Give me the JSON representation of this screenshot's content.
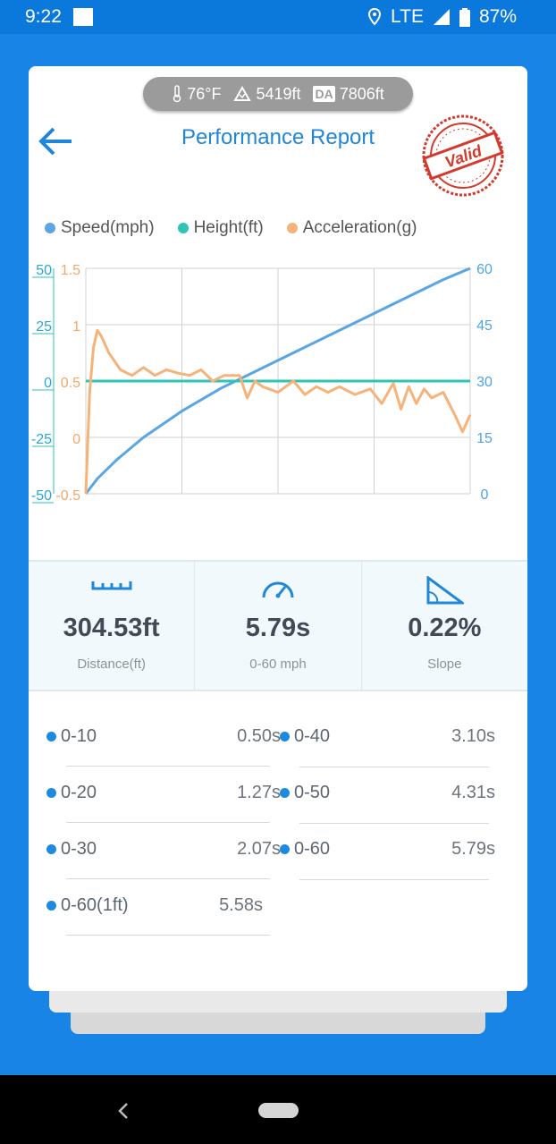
{
  "status_bar": {
    "time": "9:22",
    "network": "LTE",
    "battery": "87%"
  },
  "conditions": {
    "temperature": "76°F",
    "altitude": "5419ft",
    "da_label": "DA",
    "density_altitude": "7806ft"
  },
  "header": {
    "title": "Performance Report",
    "stamp_text": "Valid"
  },
  "legend": [
    {
      "label": "Speed(mph)",
      "color": "#5aa5e3"
    },
    {
      "label": "Height(ft)",
      "color": "#2ec4b6"
    },
    {
      "label": "Acceleration(g)",
      "color": "#f7b27a"
    }
  ],
  "chart_data": {
    "type": "line",
    "y_left_height_ticks": [
      "50",
      "25",
      "0",
      "-25",
      "-50"
    ],
    "y_left_accel_ticks": [
      "1.5",
      "1",
      "0.5",
      "0",
      "-0.5"
    ],
    "y_right_speed_ticks": [
      "60",
      "45",
      "30",
      "15",
      "0"
    ],
    "grid": true,
    "series": [
      {
        "name": "Speed(mph)",
        "color": "#5aa5e3",
        "axis": "right",
        "ylim": [
          0,
          60
        ],
        "x": [
          0,
          0.03,
          0.08,
          0.15,
          0.25,
          0.35,
          0.45,
          0.55,
          0.65,
          0.75,
          0.85,
          0.93,
          1.0
        ],
        "values": [
          0,
          4,
          9,
          15,
          22,
          28,
          33,
          38,
          43,
          48,
          53,
          57,
          60
        ]
      },
      {
        "name": "Height(ft)",
        "color": "#2ec4b6",
        "axis": "left_height",
        "ylim": [
          -50,
          50
        ],
        "x": [
          0,
          0.25,
          0.5,
          0.75,
          1.0
        ],
        "values": [
          0,
          0,
          0,
          0,
          0
        ]
      },
      {
        "name": "Acceleration(g)",
        "color": "#f7b27a",
        "axis": "left_accel",
        "ylim": [
          -0.5,
          1.5
        ],
        "x": [
          0,
          0.01,
          0.02,
          0.03,
          0.04,
          0.06,
          0.09,
          0.12,
          0.15,
          0.18,
          0.21,
          0.24,
          0.27,
          0.3,
          0.33,
          0.36,
          0.4,
          0.42,
          0.44,
          0.46,
          0.5,
          0.54,
          0.57,
          0.6,
          0.63,
          0.66,
          0.7,
          0.74,
          0.77,
          0.8,
          0.82,
          0.84,
          0.86,
          0.88,
          0.9,
          0.93,
          0.96,
          0.98,
          1.0
        ],
        "values": [
          -0.5,
          0.4,
          0.8,
          0.95,
          0.9,
          0.75,
          0.6,
          0.55,
          0.62,
          0.55,
          0.6,
          0.57,
          0.55,
          0.6,
          0.5,
          0.55,
          0.55,
          0.35,
          0.5,
          0.45,
          0.4,
          0.5,
          0.38,
          0.45,
          0.4,
          0.45,
          0.38,
          0.43,
          0.3,
          0.48,
          0.25,
          0.45,
          0.3,
          0.43,
          0.35,
          0.4,
          0.2,
          0.05,
          0.2
        ]
      }
    ]
  },
  "stats": [
    {
      "value": "304.53ft",
      "label": "Distance(ft)",
      "icon": "ruler-icon"
    },
    {
      "value": "5.79s",
      "label": "0-60 mph",
      "icon": "speedometer-icon"
    },
    {
      "value": "0.22%",
      "label": "Slope",
      "icon": "slope-icon"
    }
  ],
  "splits": [
    {
      "name": "0-10",
      "time": "0.50s"
    },
    {
      "name": "0-40",
      "time": "3.10s"
    },
    {
      "name": "0-20",
      "time": "1.27s"
    },
    {
      "name": "0-50",
      "time": "4.31s"
    },
    {
      "name": "0-30",
      "time": "2.07s"
    },
    {
      "name": "0-60",
      "time": "5.79s"
    },
    {
      "name": "0-60(1ft)",
      "time": "5.58s"
    }
  ]
}
